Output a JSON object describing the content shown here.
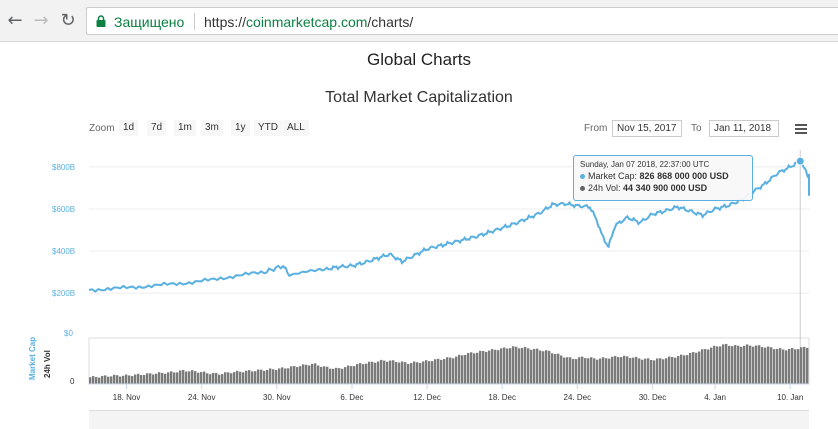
{
  "browser": {
    "secure_label": "Защищено",
    "url_scheme": "https://",
    "url_host": "coinmarketcap.com",
    "url_path": "/charts/"
  },
  "page": {
    "title": "Global Charts",
    "chart_title": "Total Market Capitalization"
  },
  "controls": {
    "zoom_label": "Zoom",
    "zoom_buttons": [
      "1d",
      "7d",
      "1m",
      "3m",
      "1y",
      "YTD",
      "ALL"
    ],
    "from_label": "From",
    "from_value": "Nov 15, 2017",
    "to_label": "To",
    "to_value": "Jan 11, 2018"
  },
  "tooltip": {
    "date": "Sunday, Jan 07 2018, 22:37:00 UTC",
    "market_cap_label": "Market Cap:",
    "market_cap_value": "826 868 000 000 USD",
    "vol_label": "24h Vol:",
    "vol_value": "44 340 900 000 USD",
    "market_cap_color": "#5ab0e0",
    "vol_color": "#666666"
  },
  "chart_data": {
    "type": "line",
    "ylabel": "Market Cap",
    "y_ticks": [
      "$200B",
      "$400B",
      "$600B",
      "$800B"
    ],
    "y_tick_values": [
      200,
      400,
      600,
      800
    ],
    "ylim": [
      120,
      880
    ],
    "vol_label": "24h Vol",
    "vol_ticks": [
      "0",
      "$0"
    ],
    "x_ticks": [
      "18. Nov",
      "24. Nov",
      "30. Nov",
      "6. Dec",
      "12. Dec",
      "18. Dec",
      "24. Dec",
      "30. Dec",
      "4. Jan",
      "10. Jan"
    ],
    "x_tick_days": [
      3,
      9,
      15,
      21,
      27,
      33,
      39,
      45,
      50,
      56
    ],
    "xlim_days": [
      0,
      57.5
    ],
    "line_color": "#5ab0e0",
    "vol_color": "#7a7a7a",
    "series": [
      {
        "values": [
          [
            0,
            215
          ],
          [
            2,
            222
          ],
          [
            4,
            230
          ],
          [
            6,
            240
          ],
          [
            8,
            250
          ],
          [
            10,
            265
          ],
          [
            12,
            285
          ],
          [
            14,
            300
          ],
          [
            15.5,
            330
          ],
          [
            16,
            285
          ],
          [
            17.5,
            305
          ],
          [
            19,
            315
          ],
          [
            20,
            325
          ],
          [
            21,
            330
          ],
          [
            22,
            345
          ],
          [
            23,
            365
          ],
          [
            24,
            385
          ],
          [
            25,
            350
          ],
          [
            26,
            380
          ],
          [
            27,
            410
          ],
          [
            28,
            425
          ],
          [
            29,
            440
          ],
          [
            30,
            455
          ],
          [
            31,
            470
          ],
          [
            32,
            490
          ],
          [
            33,
            510
          ],
          [
            34,
            530
          ],
          [
            35,
            555
          ],
          [
            36,
            580
          ],
          [
            37,
            620
          ],
          [
            38,
            625
          ],
          [
            39,
            615
          ],
          [
            40,
            610
          ],
          [
            40.6,
            540
          ],
          [
            41,
            470
          ],
          [
            41.5,
            420
          ],
          [
            42,
            520
          ],
          [
            43,
            560
          ],
          [
            44,
            535
          ],
          [
            45,
            575
          ],
          [
            46,
            590
          ],
          [
            47,
            610
          ],
          [
            48,
            590
          ],
          [
            49,
            570
          ],
          [
            50,
            600
          ],
          [
            51,
            615
          ],
          [
            52,
            640
          ],
          [
            53,
            680
          ],
          [
            54,
            720
          ],
          [
            55,
            770
          ],
          [
            56,
            800
          ],
          [
            56.8,
            827
          ],
          [
            57.4,
            760
          ],
          [
            58.2,
            755
          ],
          [
            59,
            735
          ],
          [
            60,
            715
          ],
          [
            61,
            700
          ],
          [
            61.6,
            660
          ],
          [
            62,
            680
          ]
        ]
      }
    ],
    "volume_values": [
      8,
      9,
      10,
      10,
      11,
      12,
      13,
      14,
      16,
      15,
      13,
      12,
      14,
      15,
      16,
      17,
      18,
      20,
      22,
      24,
      20,
      18,
      21,
      24,
      26,
      28,
      27,
      25,
      26,
      28,
      30,
      32,
      36,
      38,
      40,
      42,
      44,
      43,
      41,
      39,
      34,
      30,
      32,
      30,
      31,
      33,
      32,
      30,
      29,
      31,
      33,
      36,
      40,
      44,
      47,
      45,
      46,
      45,
      43,
      41,
      42,
      44
    ],
    "crosshair_day": 56.8
  }
}
